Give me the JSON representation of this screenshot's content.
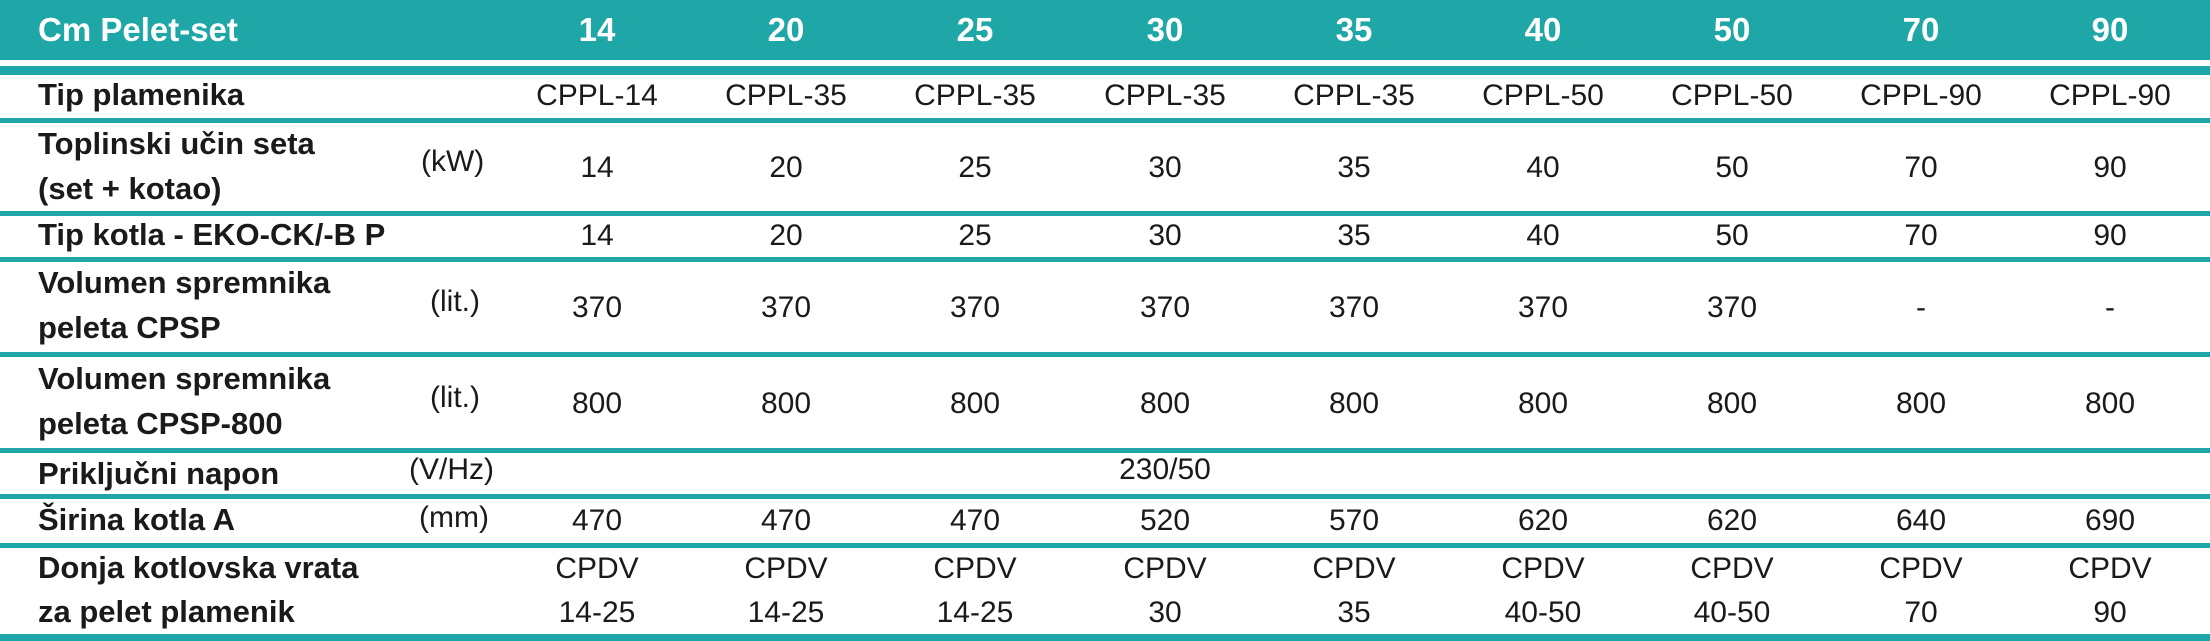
{
  "header": {
    "title": "Cm Pelet-set",
    "columns": [
      "14",
      "20",
      "25",
      "30",
      "35",
      "40",
      "50",
      "70",
      "90"
    ]
  },
  "rows": [
    {
      "label_lines": [
        "Tip plamenika"
      ],
      "unit": "",
      "values": [
        "CPPL-14",
        "CPPL-35",
        "CPPL-35",
        "CPPL-35",
        "CPPL-35",
        "CPPL-50",
        "CPPL-50",
        "CPPL-90",
        "CPPL-90"
      ]
    },
    {
      "label_lines": [
        "Toplinski učin seta",
        "(set + kotao)"
      ],
      "unit": "(kW)",
      "values": [
        "14",
        "20",
        "25",
        "30",
        "35",
        "40",
        "50",
        "70",
        "90"
      ]
    },
    {
      "label_lines": [
        "Tip kotla - EKO-CK/-B P"
      ],
      "unit": "",
      "values": [
        "14",
        "20",
        "25",
        "30",
        "35",
        "40",
        "50",
        "70",
        "90"
      ]
    },
    {
      "label_lines": [
        "Volumen spremnika",
        "peleta CPSP"
      ],
      "unit": "(lit.)",
      "values": [
        "370",
        "370",
        "370",
        "370",
        "370",
        "370",
        "370",
        "-",
        "-"
      ]
    },
    {
      "label_lines": [
        "Volumen spremnika",
        "peleta CPSP-800"
      ],
      "unit": "(lit.)",
      "values": [
        "800",
        "800",
        "800",
        "800",
        "800",
        "800",
        "800",
        "800",
        "800"
      ]
    },
    {
      "label_lines": [
        "Priključni napon"
      ],
      "unit": "(V/Hz)",
      "spanning_value": "230/50"
    },
    {
      "label_lines": [
        "Širina kotla A"
      ],
      "unit": "(mm)",
      "values": [
        "470",
        "470",
        "470",
        "520",
        "570",
        "620",
        "620",
        "640",
        "690"
      ]
    },
    {
      "label_lines": [
        "Donja kotlovska vrata",
        "za pelet plamenik"
      ],
      "unit": "",
      "values_top": [
        "CPDV",
        "CPDV",
        "CPDV",
        "CPDV",
        "CPDV",
        "CPDV",
        "CPDV",
        "CPDV",
        "CPDV"
      ],
      "values_bottom": [
        "14-25",
        "14-25",
        "14-25",
        "30",
        "35",
        "40-50",
        "40-50",
        "70",
        "90"
      ]
    }
  ]
}
